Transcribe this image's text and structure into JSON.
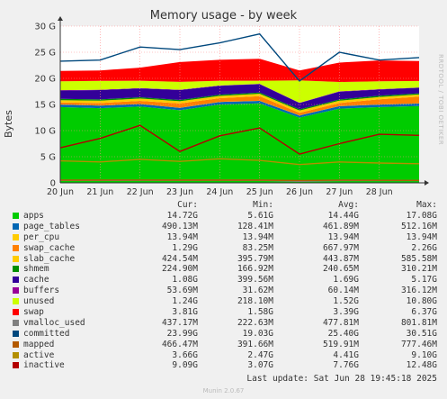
{
  "title": "Memory usage - by week",
  "side_label": "RRDTOOL / TOBI OETIKER",
  "footer": "Munin 2.0.67",
  "last_update": "Last update: Sat Jun 28 19:45:18 2025",
  "legend_header": {
    "cur": "Cur:",
    "min": "Min:",
    "avg": "Avg:",
    "max": "Max:"
  },
  "legend": [
    {
      "name": "apps",
      "color": "#00cc00",
      "cur": "14.72G",
      "min": "5.61G",
      "avg": "14.44G",
      "max": "17.08G"
    },
    {
      "name": "page_tables",
      "color": "#0066b3",
      "cur": "490.13M",
      "min": "128.41M",
      "avg": "461.89M",
      "max": "512.16M"
    },
    {
      "name": "per_cpu",
      "color": "#ffcc00",
      "cur": "13.94M",
      "min": "13.94M",
      "avg": "13.94M",
      "max": "13.94M"
    },
    {
      "name": "swap_cache",
      "color": "#ff8000",
      "cur": "1.29G",
      "min": "83.25M",
      "avg": "667.97M",
      "max": "2.26G"
    },
    {
      "name": "slab_cache",
      "color": "#ffcc00",
      "cur": "424.54M",
      "min": "395.79M",
      "avg": "443.87M",
      "max": "585.58M"
    },
    {
      "name": "shmem",
      "color": "#008f00",
      "cur": "224.90M",
      "min": "166.92M",
      "avg": "240.65M",
      "max": "310.21M"
    },
    {
      "name": "cache",
      "color": "#330099",
      "cur": "1.08G",
      "min": "399.56M",
      "avg": "1.69G",
      "max": "5.17G"
    },
    {
      "name": "buffers",
      "color": "#990099",
      "cur": "53.69M",
      "min": "31.62M",
      "avg": "60.14M",
      "max": "316.12M"
    },
    {
      "name": "unused",
      "color": "#ccff00",
      "cur": "1.24G",
      "min": "218.10M",
      "avg": "1.52G",
      "max": "10.80G"
    },
    {
      "name": "swap",
      "color": "#ff0000",
      "cur": "3.81G",
      "min": "1.58G",
      "avg": "3.39G",
      "max": "6.37G"
    },
    {
      "name": "vmalloc_used",
      "color": "#808080",
      "cur": "437.17M",
      "min": "222.63M",
      "avg": "477.81M",
      "max": "801.81M"
    },
    {
      "name": "committed",
      "color": "#00487d",
      "cur": "23.99G",
      "min": "19.03G",
      "avg": "25.40G",
      "max": "30.51G"
    },
    {
      "name": "mapped",
      "color": "#b35a00",
      "cur": "466.47M",
      "min": "391.66M",
      "avg": "519.91M",
      "max": "777.46M"
    },
    {
      "name": "active",
      "color": "#b38f00",
      "cur": "3.66G",
      "min": "2.47G",
      "avg": "4.41G",
      "max": "9.10G"
    },
    {
      "name": "inactive",
      "color": "#b30000",
      "cur": "9.09G",
      "min": "3.07G",
      "avg": "7.76G",
      "max": "12.48G"
    }
  ],
  "chart_data": {
    "type": "area",
    "title": "Memory usage - by week",
    "ylabel": "Bytes",
    "xlabel": "",
    "ylim": [
      0,
      30
    ],
    "y_unit": "G",
    "yticks": [
      "0",
      "5 G",
      "10 G",
      "15 G",
      "20 G",
      "25 G",
      "30 G"
    ],
    "xticks": [
      "20 Jun",
      "21 Jun",
      "22 Jun",
      "23 Jun",
      "24 Jun",
      "25 Jun",
      "26 Jun",
      "27 Jun",
      "28 Jun"
    ],
    "x": [
      "20 Jun",
      "21 Jun",
      "22 Jun",
      "23 Jun",
      "24 Jun",
      "25 Jun",
      "26 Jun",
      "27 Jun",
      "28 Jun",
      "28 Jun 19:45"
    ],
    "grid": true,
    "stacked_series": [
      {
        "name": "apps",
        "color": "#00cc00",
        "values": [
          14.5,
          14.3,
          14.6,
          13.9,
          15.0,
          15.2,
          12.5,
          14.2,
          14.5,
          14.7
        ]
      },
      {
        "name": "page_tables",
        "color": "#0066b3",
        "values": [
          0.48,
          0.47,
          0.48,
          0.47,
          0.49,
          0.49,
          0.4,
          0.47,
          0.49,
          0.49
        ]
      },
      {
        "name": "per_cpu",
        "color": "#ffcc00",
        "values": [
          0.014,
          0.014,
          0.014,
          0.014,
          0.014,
          0.014,
          0.014,
          0.014,
          0.014,
          0.014
        ]
      },
      {
        "name": "swap_cache",
        "color": "#ff8000",
        "values": [
          0.4,
          0.5,
          0.6,
          0.8,
          0.7,
          0.9,
          0.5,
          0.6,
          1.0,
          1.29
        ]
      },
      {
        "name": "slab_cache",
        "color": "#ffcc00",
        "values": [
          0.44,
          0.44,
          0.45,
          0.44,
          0.44,
          0.45,
          0.43,
          0.44,
          0.43,
          0.42
        ]
      },
      {
        "name": "shmem",
        "color": "#008f00",
        "values": [
          0.24,
          0.24,
          0.24,
          0.24,
          0.24,
          0.24,
          0.23,
          0.23,
          0.23,
          0.22
        ]
      },
      {
        "name": "cache",
        "color": "#330099",
        "values": [
          1.6,
          1.8,
          1.7,
          1.9,
          1.7,
          1.6,
          1.2,
          1.5,
          1.2,
          1.08
        ]
      },
      {
        "name": "buffers",
        "color": "#990099",
        "values": [
          0.06,
          0.06,
          0.06,
          0.06,
          0.06,
          0.06,
          0.05,
          0.06,
          0.06,
          0.05
        ]
      },
      {
        "name": "unused",
        "color": "#ccff00",
        "values": [
          1.7,
          1.7,
          1.4,
          1.5,
          0.9,
          0.6,
          4.3,
          1.8,
          1.5,
          1.24
        ]
      },
      {
        "name": "swap",
        "color": "#ff0000",
        "values": [
          2.0,
          2.0,
          2.5,
          3.8,
          4.0,
          4.2,
          1.9,
          3.7,
          4.0,
          3.81
        ]
      }
    ],
    "line_series": [
      {
        "name": "committed",
        "color": "#00487d",
        "values": [
          23.3,
          23.5,
          26.0,
          25.5,
          26.8,
          28.5,
          19.5,
          25.0,
          23.5,
          23.99
        ]
      },
      {
        "name": "inactive",
        "color": "#b30000",
        "values": [
          6.7,
          8.5,
          11.0,
          6.0,
          9.0,
          10.5,
          5.5,
          7.5,
          9.3,
          9.09
        ]
      },
      {
        "name": "active",
        "color": "#b38f00",
        "values": [
          4.2,
          4.0,
          4.5,
          4.1,
          4.6,
          4.3,
          3.5,
          4.0,
          3.8,
          3.66
        ]
      },
      {
        "name": "vmalloc_used",
        "color": "#808080",
        "values": [
          0.46,
          0.47,
          0.48,
          0.48,
          0.5,
          0.49,
          0.3,
          0.45,
          0.44,
          0.44
        ]
      },
      {
        "name": "mapped",
        "color": "#b35a00",
        "values": [
          0.52,
          0.52,
          0.53,
          0.52,
          0.52,
          0.52,
          0.45,
          0.5,
          0.48,
          0.47
        ]
      }
    ]
  }
}
